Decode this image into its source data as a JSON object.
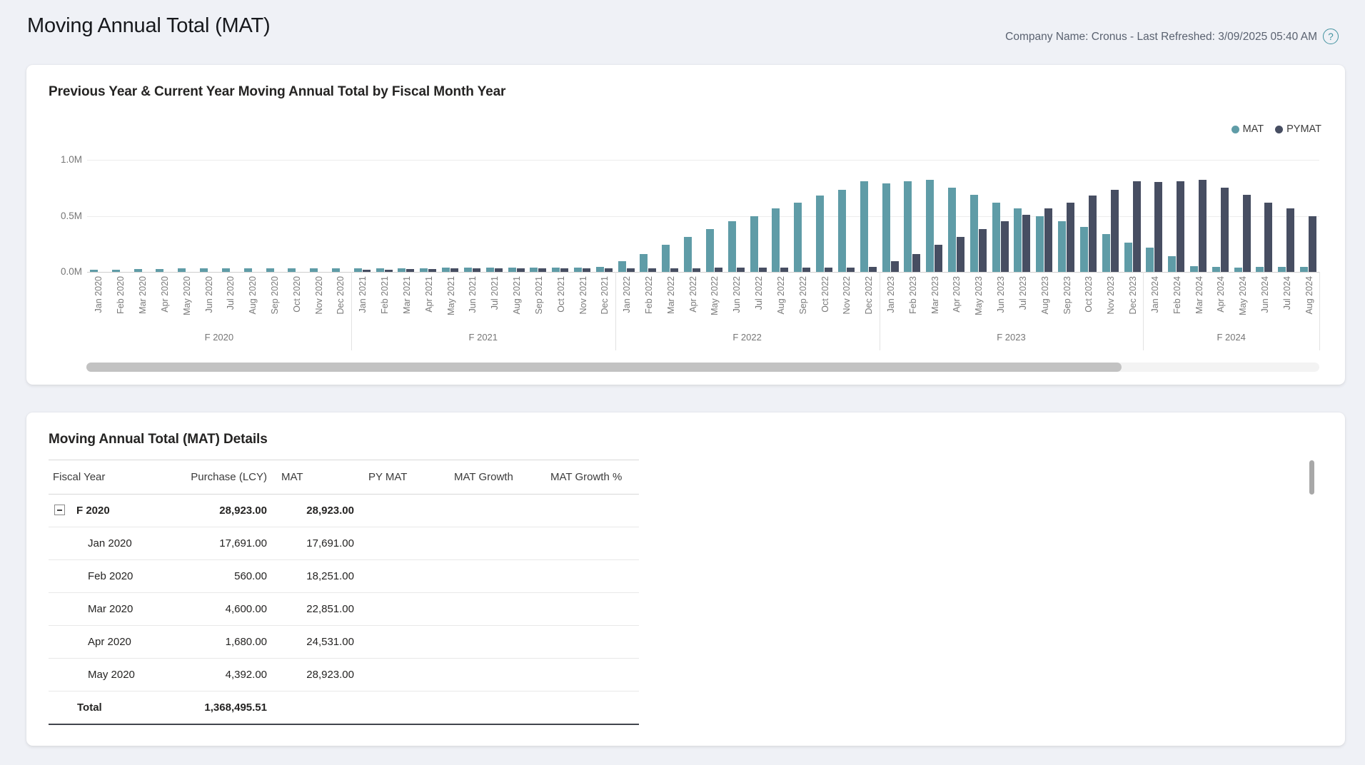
{
  "page": {
    "title": "Moving Annual Total (MAT)",
    "company_info": "Company Name: Cronus - Last Refreshed: 3/09/2025 05:40 AM"
  },
  "colors": {
    "mat": "#5F9CA7",
    "pymat": "#474E62",
    "page_bg": "#EFF1F6",
    "card_bg": "#FFFFFF",
    "help_icon": "#43929F",
    "scrollbar_thumb": "#C2C2C2"
  },
  "chart": {
    "title": "Previous Year & Current Year Moving Annual Total by Fiscal Month Year",
    "y_ticks": [
      "1.0M",
      "0.5M",
      "0.0M"
    ]
  },
  "chart_data": {
    "type": "bar",
    "title": "Previous Year & Current Year Moving Annual Total by Fiscal Month Year",
    "xlabel": "Fiscal Month Year",
    "ylabel": "",
    "unit": "millions",
    "ylim": [
      0,
      1.0
    ],
    "y_tick_labels": [
      "0.0M",
      "0.5M",
      "1.0M"
    ],
    "grid": true,
    "legend_position": "top-right",
    "fiscal_year_groups": [
      {
        "label": "F 2020",
        "months": 12
      },
      {
        "label": "F 2021",
        "months": 12
      },
      {
        "label": "F 2022",
        "months": 12
      },
      {
        "label": "F 2023",
        "months": 12
      },
      {
        "label": "F 2024",
        "months": 8
      }
    ],
    "categories": [
      "Jan 2020",
      "Feb 2020",
      "Mar 2020",
      "Apr 2020",
      "May 2020",
      "Jun 2020",
      "Jul 2020",
      "Aug 2020",
      "Sep 2020",
      "Oct 2020",
      "Nov 2020",
      "Dec 2020",
      "Jan 2021",
      "Feb 2021",
      "Mar 2021",
      "Apr 2021",
      "May 2021",
      "Jun 2021",
      "Jul 2021",
      "Aug 2021",
      "Sep 2021",
      "Oct 2021",
      "Nov 2021",
      "Dec 2021",
      "Jan 2022",
      "Feb 2022",
      "Mar 2022",
      "Apr 2022",
      "May 2022",
      "Jun 2022",
      "Jul 2022",
      "Aug 2022",
      "Sep 2022",
      "Oct 2022",
      "Nov 2022",
      "Dec 2022",
      "Jan 2023",
      "Feb 2023",
      "Mar 2023",
      "Apr 2023",
      "May 2023",
      "Jun 2023",
      "Jul 2023",
      "Aug 2023",
      "Sep 2023",
      "Oct 2023",
      "Nov 2023",
      "Dec 2023",
      "Jan 2024",
      "Feb 2024",
      "Mar 2024",
      "Apr 2024",
      "May 2024",
      "Jun 2024",
      "Jul 2024",
      "Aug 2024"
    ],
    "series": [
      {
        "name": "MAT",
        "color": "#5F9CA7",
        "values": [
          0.018,
          0.018,
          0.023,
          0.025,
          0.029,
          0.029,
          0.029,
          0.029,
          0.029,
          0.029,
          0.029,
          0.029,
          0.03,
          0.032,
          0.034,
          0.035,
          0.036,
          0.037,
          0.037,
          0.038,
          0.038,
          0.039,
          0.04,
          0.042,
          0.095,
          0.16,
          0.24,
          0.31,
          0.38,
          0.45,
          0.5,
          0.57,
          0.62,
          0.68,
          0.73,
          0.81,
          0.79,
          0.81,
          0.82,
          0.75,
          0.69,
          0.62,
          0.57,
          0.5,
          0.45,
          0.4,
          0.34,
          0.26,
          0.22,
          0.14,
          0.05,
          0.042,
          0.036,
          0.042,
          0.042,
          0.046
        ]
      },
      {
        "name": "PYMAT",
        "color": "#474E62",
        "values": [
          0,
          0,
          0,
          0,
          0,
          0,
          0,
          0,
          0,
          0,
          0,
          0,
          0.018,
          0.018,
          0.023,
          0.025,
          0.029,
          0.029,
          0.029,
          0.029,
          0.029,
          0.029,
          0.029,
          0.029,
          0.03,
          0.032,
          0.034,
          0.035,
          0.036,
          0.037,
          0.037,
          0.038,
          0.038,
          0.039,
          0.04,
          0.042,
          0.095,
          0.16,
          0.24,
          0.31,
          0.38,
          0.45,
          0.51,
          0.57,
          0.62,
          0.68,
          0.73,
          0.81,
          0.8,
          0.81,
          0.82,
          0.75,
          0.69,
          0.62,
          0.57,
          0.5
        ]
      }
    ]
  },
  "details": {
    "title": "Moving Annual Total (MAT) Details",
    "columns": [
      "Fiscal Year",
      "Purchase (LCY)",
      "MAT",
      "PY MAT",
      "MAT Growth",
      "MAT Growth %"
    ],
    "rows": [
      {
        "type": "group",
        "fiscal_year": "F 2020",
        "purchase_lcy": "28,923.00",
        "mat": "28,923.00",
        "py_mat": "",
        "mat_growth": "",
        "mat_growth_pct": ""
      },
      {
        "type": "detail",
        "fiscal_year": "Jan 2020",
        "purchase_lcy": "17,691.00",
        "mat": "17,691.00",
        "py_mat": "",
        "mat_growth": "",
        "mat_growth_pct": ""
      },
      {
        "type": "detail",
        "fiscal_year": "Feb 2020",
        "purchase_lcy": "560.00",
        "mat": "18,251.00",
        "py_mat": "",
        "mat_growth": "",
        "mat_growth_pct": ""
      },
      {
        "type": "detail",
        "fiscal_year": "Mar 2020",
        "purchase_lcy": "4,600.00",
        "mat": "22,851.00",
        "py_mat": "",
        "mat_growth": "",
        "mat_growth_pct": ""
      },
      {
        "type": "detail",
        "fiscal_year": "Apr 2020",
        "purchase_lcy": "1,680.00",
        "mat": "24,531.00",
        "py_mat": "",
        "mat_growth": "",
        "mat_growth_pct": ""
      },
      {
        "type": "detail",
        "fiscal_year": "May 2020",
        "purchase_lcy": "4,392.00",
        "mat": "28,923.00",
        "py_mat": "",
        "mat_growth": "",
        "mat_growth_pct": ""
      },
      {
        "type": "total",
        "fiscal_year": "Total",
        "purchase_lcy": "1,368,495.51",
        "mat": "",
        "py_mat": "",
        "mat_growth": "",
        "mat_growth_pct": ""
      }
    ]
  }
}
